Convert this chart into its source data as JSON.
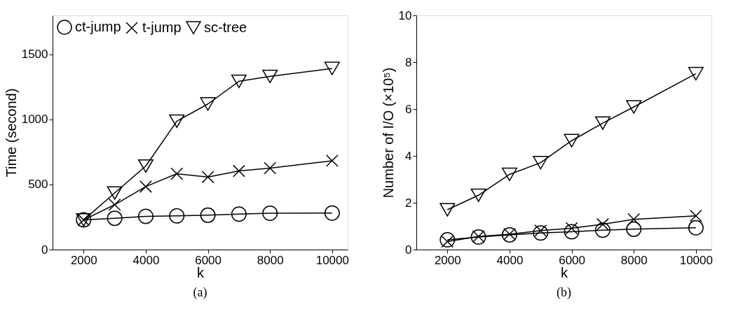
{
  "chart_data": [
    {
      "type": "line",
      "xlabel": "k",
      "ylabel": "Time (second)",
      "annotations": [
        "(a)"
      ],
      "x": [
        2000,
        3000,
        4000,
        5000,
        6000,
        7000,
        8000,
        10000
      ],
      "xlim": [
        1000,
        10500
      ],
      "ylim": [
        0,
        1800
      ],
      "xticks": [
        2000,
        4000,
        6000,
        8000,
        10000
      ],
      "yticks": [
        0,
        500,
        1000,
        1500
      ],
      "grid": false,
      "legend": "top left",
      "line_style": "solid",
      "series": [
        {
          "name": "ct-jump",
          "color": "#000000",
          "marker": "circle",
          "values": [
            228,
            241,
            255,
            259,
            264,
            273,
            279,
            281
          ]
        },
        {
          "name": "t-jump",
          "color": "#000000",
          "marker": "cross",
          "values": [
            228,
            345,
            484,
            583,
            558,
            604,
            626,
            683
          ]
        },
        {
          "name": "sc-tree",
          "color": "#000000",
          "marker": "triangle-down",
          "values": [
            228,
            435,
            642,
            987,
            1119,
            1293,
            1331,
            1392
          ]
        }
      ]
    },
    {
      "type": "line",
      "xlabel": "k",
      "ylabel": "Number of I/O (×10⁵)",
      "annotations": [
        "(b)"
      ],
      "x": [
        2000,
        3000,
        4000,
        5000,
        6000,
        7000,
        8000,
        10000
      ],
      "xlim": [
        1000,
        10500
      ],
      "ylim": [
        0,
        10
      ],
      "xticks": [
        2000,
        4000,
        6000,
        8000,
        10000
      ],
      "yticks": [
        0,
        2,
        4,
        6,
        8,
        10
      ],
      "grid": false,
      "legend": "top left",
      "line_style": "solid",
      "series": [
        {
          "name": "ct-jump",
          "color": "#000000",
          "marker": "circle",
          "values": [
            0.42,
            0.54,
            0.63,
            0.71,
            0.76,
            0.83,
            0.87,
            0.93
          ]
        },
        {
          "name": "t-jump",
          "color": "#000000",
          "marker": "cross",
          "values": [
            0.34,
            0.56,
            0.66,
            0.81,
            0.91,
            1.08,
            1.29,
            1.44
          ]
        },
        {
          "name": "sc-tree",
          "color": "#000000",
          "marker": "triangle-down",
          "values": [
            1.7,
            2.32,
            3.21,
            3.71,
            4.65,
            5.4,
            6.09,
            7.51
          ]
        }
      ]
    }
  ]
}
